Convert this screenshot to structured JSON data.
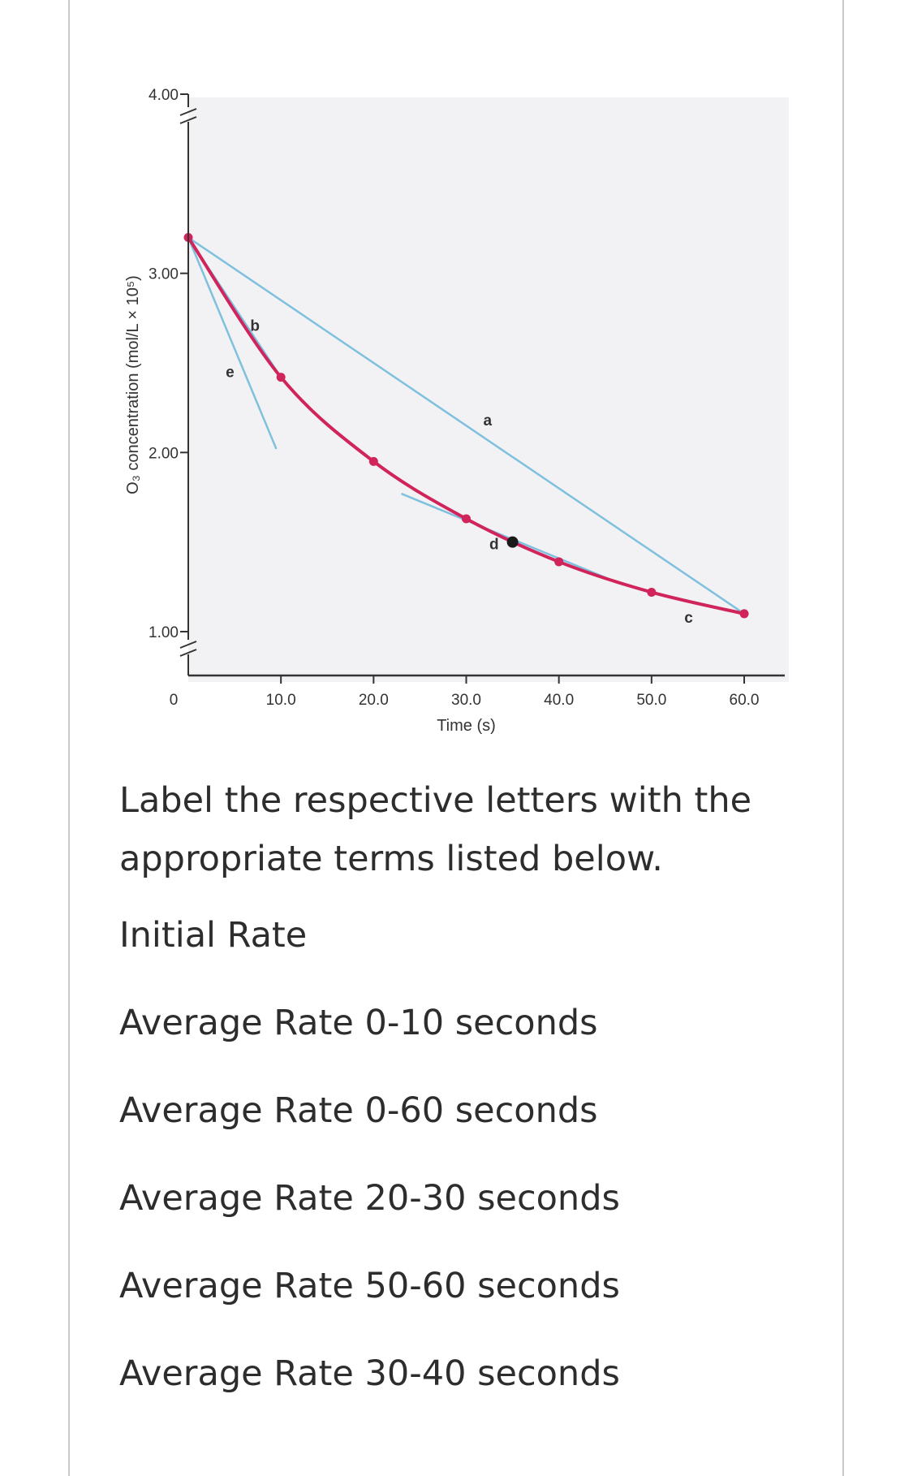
{
  "chart_data": {
    "type": "line",
    "title": "",
    "xlabel": "Time (s)",
    "ylabel": "O₃ concentration (mol/L × 10⁵)",
    "xlim": [
      0,
      60
    ],
    "ylim": [
      1.0,
      4.0
    ],
    "x_ticks": [
      {
        "value": 0,
        "label": "0"
      },
      {
        "value": 10,
        "label": "10.0"
      },
      {
        "value": 20,
        "label": "20.0"
      },
      {
        "value": 30,
        "label": "30.0"
      },
      {
        "value": 40,
        "label": "40.0"
      },
      {
        "value": 50,
        "label": "50.0"
      },
      {
        "value": 60,
        "label": "60.0"
      }
    ],
    "y_ticks": [
      {
        "value": 1.0,
        "label": "1.00"
      },
      {
        "value": 2.0,
        "label": "2.00"
      },
      {
        "value": 3.0,
        "label": "3.00"
      },
      {
        "value": 4.0,
        "label": "4.00"
      }
    ],
    "y_axis_break": true,
    "series": [
      {
        "x": [
          0,
          10,
          20,
          30,
          40,
          50,
          60
        ],
        "values": [
          3.2,
          2.42,
          1.95,
          1.63,
          1.39,
          1.22,
          1.1
        ],
        "color": "#d0245a"
      }
    ],
    "highlight_point": {
      "x": 35,
      "y": 1.5,
      "color": "#1a1a1a"
    },
    "annotation_lines": [
      {
        "label": "a",
        "from": [
          0,
          3.2
        ],
        "to": [
          60,
          1.1
        ],
        "label_at": [
          32.3,
          2.15
        ]
      },
      {
        "label": "b",
        "from": [
          0,
          3.2
        ],
        "to": [
          10,
          2.42
        ],
        "label_at": [
          7.2,
          2.68
        ]
      },
      {
        "label": "c",
        "from": [
          50,
          1.22
        ],
        "to": [
          60,
          1.1
        ],
        "label_at": [
          54,
          1.05
        ]
      },
      {
        "label": "d",
        "from": [
          23,
          1.77
        ],
        "to": [
          47,
          1.26
        ],
        "label_at": [
          33,
          1.46
        ]
      },
      {
        "label": "e",
        "from": [
          0,
          3.2
        ],
        "to": [
          9.5,
          2.02
        ],
        "label_at": [
          4.5,
          2.42
        ]
      }
    ],
    "colors": {
      "curve": "#d0245a",
      "lines": "#7ec0de",
      "plot_bg": "#f2f2f4",
      "axis": "#333333"
    }
  },
  "question": "Label the respective letters with the appropriate terms listed below.",
  "terms": [
    "Initial Rate",
    "Average Rate 0-10 seconds",
    "Average Rate 0-60 seconds",
    "Average Rate 20-30 seconds",
    "Average Rate 50-60 seconds",
    "Average Rate 30-40 seconds"
  ]
}
